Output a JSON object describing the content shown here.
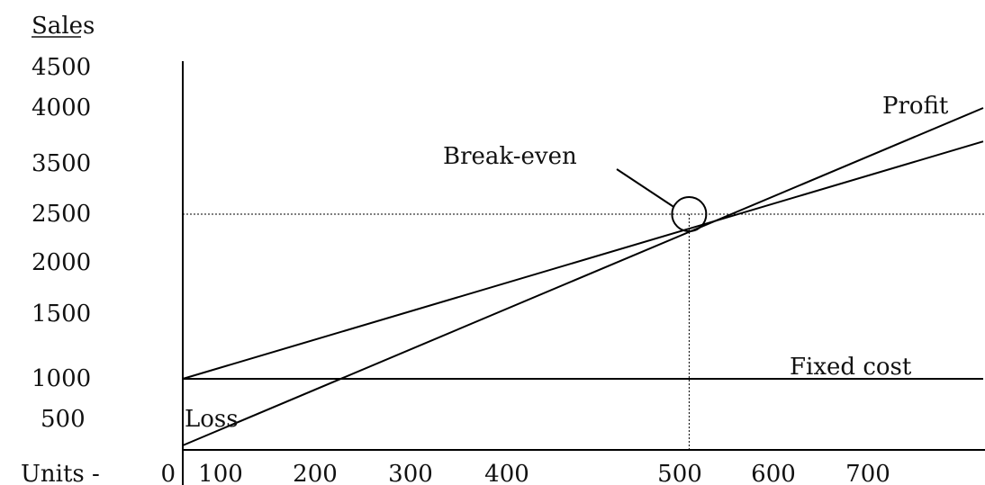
{
  "chart_data": {
    "type": "line",
    "ylabel": "Sales",
    "xlabel": "Units -",
    "y_ticks": [
      {
        "label": "4500",
        "value": 4500
      },
      {
        "label": "4000",
        "value": 4000
      },
      {
        "label": "3500",
        "value": 3500
      },
      {
        "label": "2500",
        "value": 2500
      },
      {
        "label": "2000",
        "value": 2000
      },
      {
        "label": "1500",
        "value": 1500
      },
      {
        "label": "1000",
        "value": 1000
      },
      {
        "label": "500",
        "value": 500
      }
    ],
    "x_ticks": [
      {
        "label": "0",
        "value": 0
      },
      {
        "label": "100",
        "value": 100
      },
      {
        "label": "200",
        "value": 200
      },
      {
        "label": "300",
        "value": 300
      },
      {
        "label": "400",
        "value": 400
      },
      {
        "label": "500",
        "value": 500
      },
      {
        "label": "600",
        "value": 600
      },
      {
        "label": "700",
        "value": 700
      }
    ],
    "series": [
      {
        "x": [
          0,
          800
        ],
        "y": [
          1000,
          3700
        ]
      },
      {
        "x": [
          0,
          800
        ],
        "y": [
          100,
          4000
        ]
      },
      {
        "x": [
          0,
          800
        ],
        "y": [
          1000,
          1000
        ]
      }
    ],
    "break_even": {
      "x": 510,
      "y": 2500,
      "label": "Break-even"
    },
    "annotations": [
      {
        "text": "Profit",
        "x": 710,
        "y": 3900
      },
      {
        "text": "Fixed cost",
        "x": 620,
        "y": 1050
      },
      {
        "text": "Loss",
        "x": 5,
        "y": 380
      }
    ],
    "xlim": [
      0,
      800
    ],
    "ylim": [
      0,
      4500
    ]
  }
}
